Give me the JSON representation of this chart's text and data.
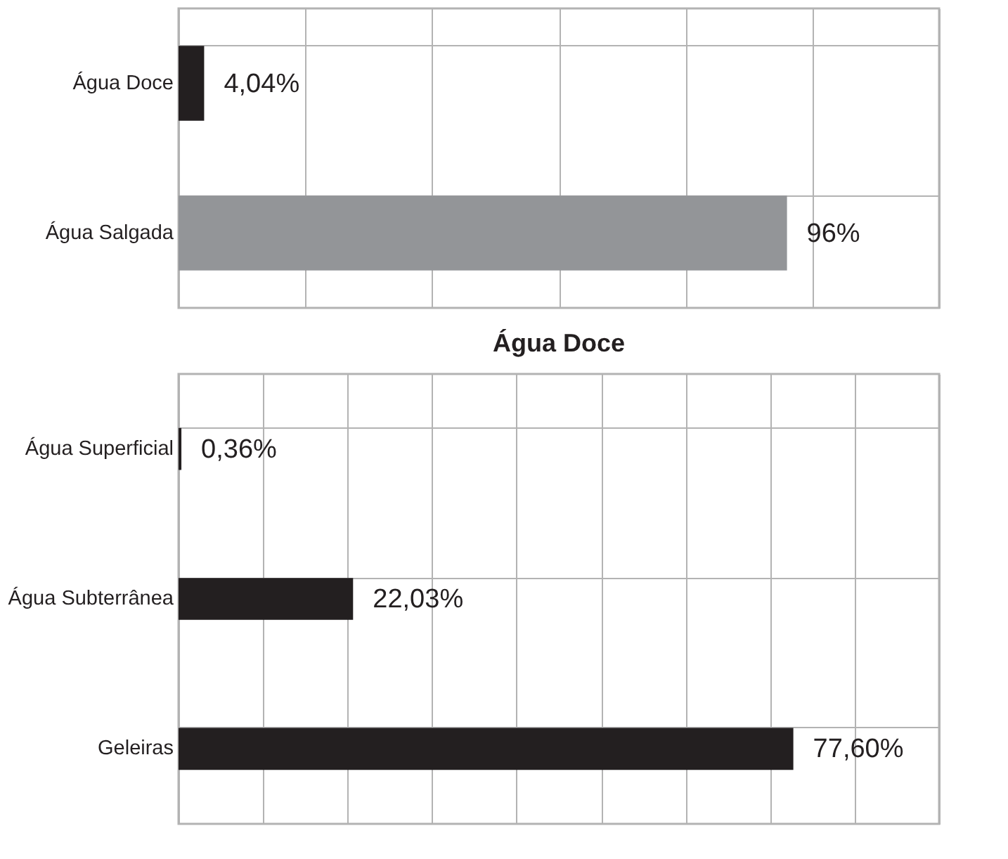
{
  "chart_data": [
    {
      "type": "bar",
      "orientation": "horizontal",
      "categories": [
        "Água Doce",
        "Água Salgada"
      ],
      "values": [
        4.04,
        96
      ],
      "colors": [
        "#231f20",
        "#939598"
      ],
      "value_labels": [
        "4,04%",
        "96%"
      ],
      "xlim": [
        0,
        120
      ],
      "xticks": [
        {
          "value": 0,
          "label": null
        },
        {
          "value": 20,
          "label": null
        },
        {
          "value": 40,
          "label": null
        },
        {
          "value": 60,
          "label": null
        },
        {
          "value": 80,
          "label": null
        },
        {
          "value": 100,
          "label": null
        },
        {
          "value": 120,
          "label": null
        }
      ],
      "grid": true,
      "tick_labels": "y"
    },
    {
      "type": "bar",
      "orientation": "horizontal",
      "title": "Água Doce",
      "categories": [
        "Água Superficial",
        "Água Subterrânea",
        "Geleiras"
      ],
      "values": [
        0.36,
        22.03,
        77.6
      ],
      "color": "#231f20",
      "value_labels": [
        "0,36%",
        "22,03%",
        "77,60%"
      ],
      "xlim": [
        0,
        96
      ],
      "xticks": [
        {
          "value": 0,
          "label": null
        },
        {
          "value": 10.67,
          "label": null
        },
        {
          "value": 21.33,
          "label": null
        },
        {
          "value": 32,
          "label": null
        },
        {
          "value": 42.67,
          "label": null
        },
        {
          "value": 53.33,
          "label": null
        },
        {
          "value": 64,
          "label": null
        },
        {
          "value": 74.67,
          "label": null
        },
        {
          "value": 85.33,
          "label": null
        },
        {
          "value": 96,
          "label": null
        }
      ],
      "grid": true,
      "tick_labels": "y"
    }
  ]
}
